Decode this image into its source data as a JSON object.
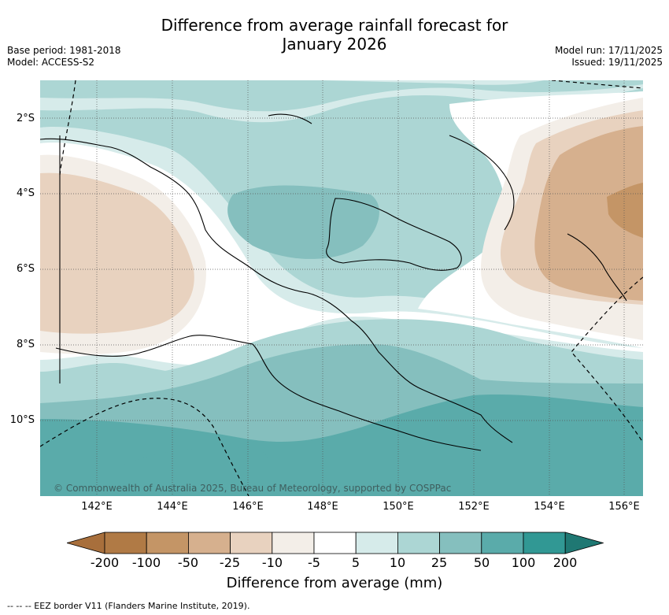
{
  "title_line1": "Difference from average rainfall forecast for",
  "title_line2": "January 2026",
  "meta_left": [
    "Base period: 1981-2018",
    "Model: ACCESS-S2"
  ],
  "meta_right": [
    "Model run: 17/11/2025",
    "Issued: 19/11/2025"
  ],
  "lat_labels": [
    "2°S",
    "4°S",
    "6°S",
    "8°S",
    "10°S"
  ],
  "lon_labels": [
    "142°E",
    "144°E",
    "146°E",
    "148°E",
    "150°E",
    "152°E",
    "154°E",
    "156°E"
  ],
  "copyright": "© Commonwealth of Australia 2025, Bureau of Meteorology, supported by COSPPac",
  "colorbar": {
    "ticks": [
      "-200",
      "-100",
      "-50",
      "-25",
      "-10",
      "-5",
      "5",
      "10",
      "25",
      "50",
      "100",
      "200"
    ],
    "colors": [
      "#a86f3c",
      "#b07a45",
      "#c49566",
      "#d6b08e",
      "#e8d2bf",
      "#f3eee8",
      "#ffffff",
      "#d6ebea",
      "#acd6d4",
      "#85bfbe",
      "#5aabaa",
      "#319894",
      "#1f7873"
    ],
    "title": "Difference from average (mm)"
  },
  "eez_note": "-- -- -- EEZ border V11 (Flanders Marine Institute, 2019)."
}
